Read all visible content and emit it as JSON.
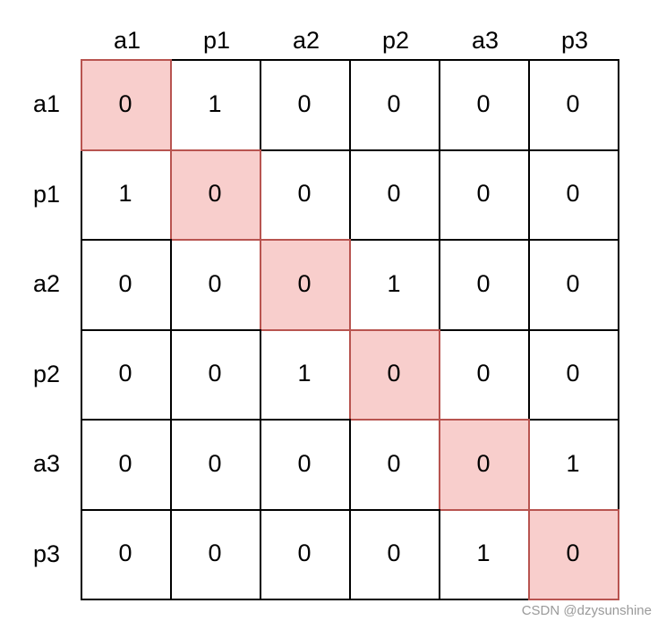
{
  "matrix": {
    "column_labels": [
      "a1",
      "p1",
      "a2",
      "p2",
      "a3",
      "p3"
    ],
    "row_labels": [
      "a1",
      "p1",
      "a2",
      "p2",
      "a3",
      "p3"
    ],
    "values": [
      [
        "0",
        "1",
        "0",
        "0",
        "0",
        "0"
      ],
      [
        "1",
        "0",
        "0",
        "0",
        "0",
        "0"
      ],
      [
        "0",
        "0",
        "0",
        "1",
        "0",
        "0"
      ],
      [
        "0",
        "0",
        "1",
        "0",
        "0",
        "0"
      ],
      [
        "0",
        "0",
        "0",
        "0",
        "0",
        "1"
      ],
      [
        "0",
        "0",
        "0",
        "0",
        "1",
        "0"
      ]
    ],
    "diagonal_fill_color": "#f8cecc",
    "diagonal_border_color": "#b85450",
    "grid_line_color": "#000000"
  },
  "watermark": "CSDN @dzysunshine"
}
